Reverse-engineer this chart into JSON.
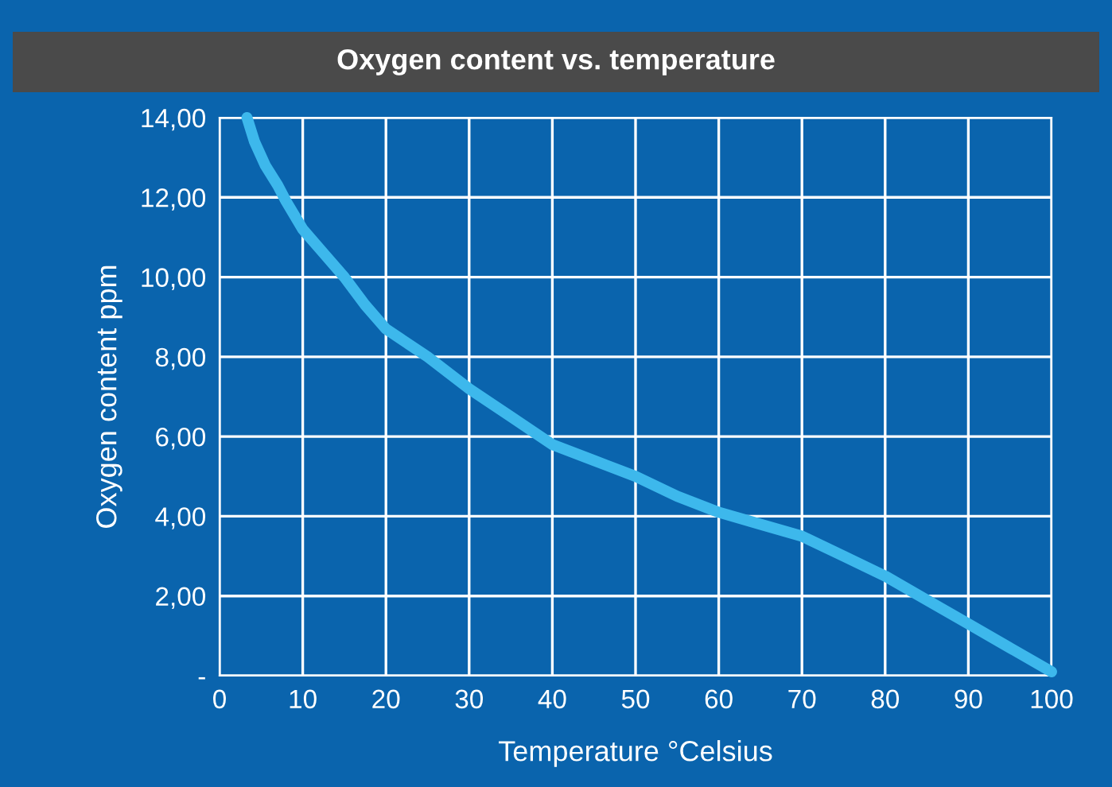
{
  "chart_data": {
    "type": "line",
    "title": "Oxygen content vs. temperature",
    "xlabel": "Temperature °Celsius",
    "ylabel": "Oxygen content ppm",
    "series": [
      {
        "color": "#3db8ec",
        "x": [
          3.3,
          4.2,
          5.5,
          7,
          8,
          10,
          12.5,
          15,
          17.5,
          20,
          25,
          30,
          35,
          40,
          45,
          50,
          55,
          60,
          65,
          70,
          75,
          80,
          85,
          90,
          95,
          100
        ],
        "values": [
          14,
          13.4,
          12.8,
          12.3,
          11.9,
          11.2,
          10.6,
          10.0,
          9.3,
          8.7,
          8.0,
          7.2,
          6.5,
          5.8,
          5.4,
          5.0,
          4.5,
          4.1,
          3.8,
          3.5,
          3.0,
          2.5,
          1.9,
          1.3,
          0.7,
          0.1
        ]
      }
    ],
    "xlim": [
      0,
      100
    ],
    "xticks": [
      0,
      10,
      20,
      30,
      40,
      50,
      60,
      70,
      80,
      90,
      100
    ],
    "ylim": [
      0,
      14
    ],
    "yticks": [
      {
        "value": 0,
        "label": "-"
      },
      {
        "value": 2,
        "label": "2,00"
      },
      {
        "value": 4,
        "label": "4,00"
      },
      {
        "value": 6,
        "label": "6,00"
      },
      {
        "value": 8,
        "label": "8,00"
      },
      {
        "value": 10,
        "label": "10,00"
      },
      {
        "value": 12,
        "label": "12,00"
      },
      {
        "value": 14,
        "label": "14,00"
      }
    ],
    "grid": true,
    "marker": "none",
    "line_style": "solid"
  }
}
